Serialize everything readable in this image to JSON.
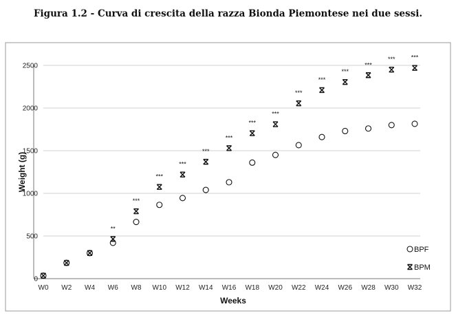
{
  "caption": "Figura 1.2 - Curva di crescita della razza Bionda Piemontese nei due sessi.",
  "chart_data": {
    "type": "scatter",
    "title": "",
    "xlabel": "Weeks",
    "ylabel": "Weight (g)",
    "ylim": [
      0,
      2500
    ],
    "yticks": [
      0,
      500,
      1000,
      1500,
      2000,
      2500
    ],
    "categories": [
      "W0",
      "W2",
      "W4",
      "W6",
      "W8",
      "W10",
      "W12",
      "W14",
      "W16",
      "W18",
      "W20",
      "W22",
      "W24",
      "W26",
      "W28",
      "W30",
      "W32"
    ],
    "grid": "horizontal",
    "legend_position": "bottom-right",
    "series": [
      {
        "name": "BPF",
        "marker": "circle",
        "values": [
          35,
          185,
          300,
          420,
          665,
          865,
          945,
          1040,
          1130,
          1360,
          1450,
          1565,
          1660,
          1730,
          1760,
          1800,
          1815
        ]
      },
      {
        "name": "BPM",
        "marker": "asterisk",
        "values": [
          35,
          185,
          300,
          465,
          790,
          1075,
          1220,
          1370,
          1530,
          1705,
          1810,
          2055,
          2210,
          2305,
          2385,
          2450,
          2470
        ]
      }
    ],
    "significance": [
      "",
      "",
      "",
      "**",
      "***",
      "***",
      "***",
      "***",
      "***",
      "***",
      "***",
      "***",
      "***",
      "***",
      "***",
      "***",
      "***"
    ]
  }
}
